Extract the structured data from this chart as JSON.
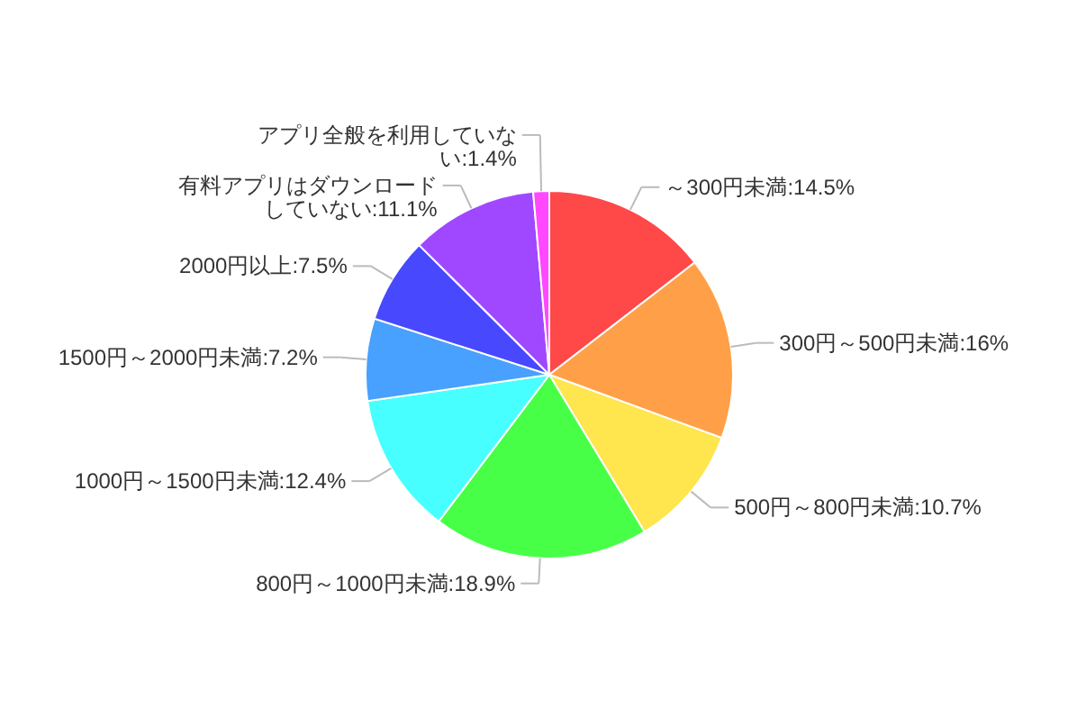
{
  "chart_data": {
    "type": "pie",
    "categories": [
      "～300円未満",
      "300円～500円未満",
      "500円～800円未満",
      "800円～1000円未満",
      "1000円～1500円未満",
      "1500円～2000円未満",
      "2000円以上",
      "有料アプリはダウンロードしていない",
      "アプリ全般を利用していない"
    ],
    "values": [
      14.5,
      16,
      10.7,
      18.9,
      12.4,
      7.2,
      7.5,
      11.1,
      1.4
    ],
    "value_labels": [
      "14.5%",
      "16%",
      "10.7%",
      "18.9%",
      "12.4%",
      "7.2%",
      "7.5%",
      "11.1%",
      "1.4%"
    ],
    "colors": [
      "#ff4848",
      "#ffa048",
      "#ffe54e",
      "#48ff48",
      "#48ffff",
      "#48a0ff",
      "#4848ff",
      "#a048ff",
      "#ff48ff"
    ]
  }
}
